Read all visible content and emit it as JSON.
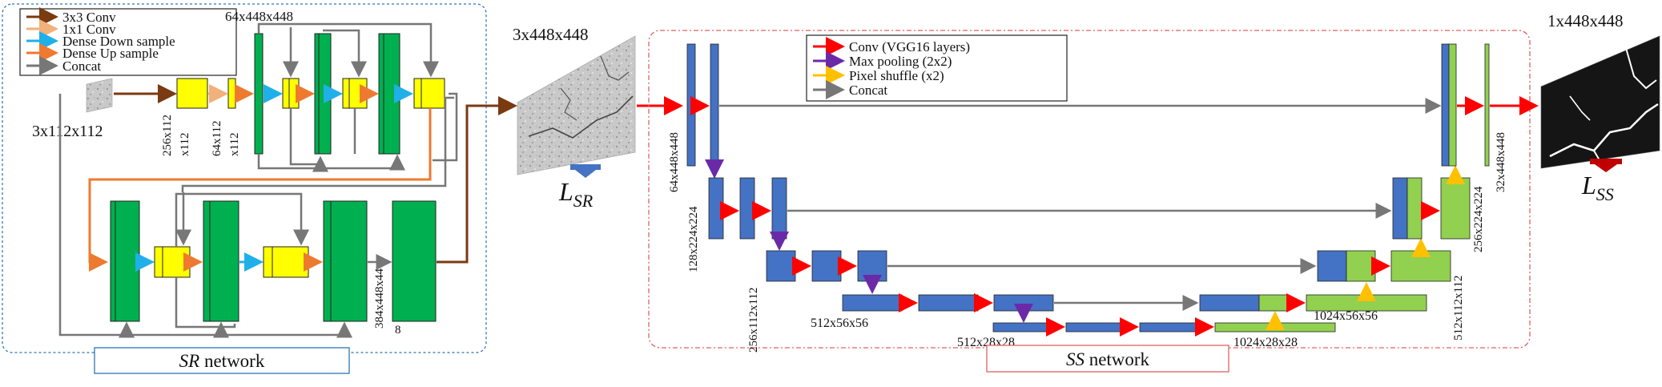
{
  "sr_legend": {
    "items": [
      {
        "label": "3x3 Conv",
        "color": "#7a3a12"
      },
      {
        "label": "1x1 Conv",
        "color": "#f2b07a"
      },
      {
        "label": "Dense Down sample",
        "color": "#1fb0ea"
      },
      {
        "label": "Dense Up sample",
        "color": "#ee7a30"
      },
      {
        "label": "Concat",
        "color": "#777777"
      }
    ]
  },
  "ss_legend": {
    "items": [
      {
        "label": "Conv (VGG16 layers)",
        "color": "#ff0000"
      },
      {
        "label": "Max pooling (2x2)",
        "color": "#6a2aa8"
      },
      {
        "label": "Pixel shuffle (x2)",
        "color": "#ffc000"
      },
      {
        "label": "Concat",
        "color": "#777777"
      }
    ]
  },
  "dims": {
    "sr_input": "3x112x112",
    "sr_top": "64x448x448",
    "sr_a1": "256x112",
    "sr_a2": "x112",
    "sr_b1": "64x112",
    "sr_b2": "x112",
    "sr_out1": "384x448x44",
    "sr_out2": "8",
    "mid_image": "3x448x448",
    "ss_c1": "64x448x448",
    "ss_c2": "128x224x224",
    "ss_c3": "256x112x112",
    "ss_c4": "512x56x56",
    "ss_c5": "512x28x28",
    "ss_d5": "1024x28x28",
    "ss_d4": "1024x56x56",
    "ss_d3": "512x112x112",
    "ss_d2": "256x224x224",
    "ss_d1": "32x448x448",
    "output": "1x448x448"
  },
  "loss": {
    "sr": {
      "main": "L",
      "sub": "SR"
    },
    "ss": {
      "main": "L",
      "sub": "SS"
    }
  },
  "captions": {
    "sr": {
      "italic": "SR",
      "rest": " network"
    },
    "ss": {
      "italic": "SS",
      "rest": " network"
    }
  },
  "colors": {
    "green": "#00b050",
    "yellow": "#ffff00",
    "blue": "#4472c4",
    "light_green": "#92d050",
    "sr_frame": "#2e75b6",
    "ss_frame": "#e06060"
  }
}
